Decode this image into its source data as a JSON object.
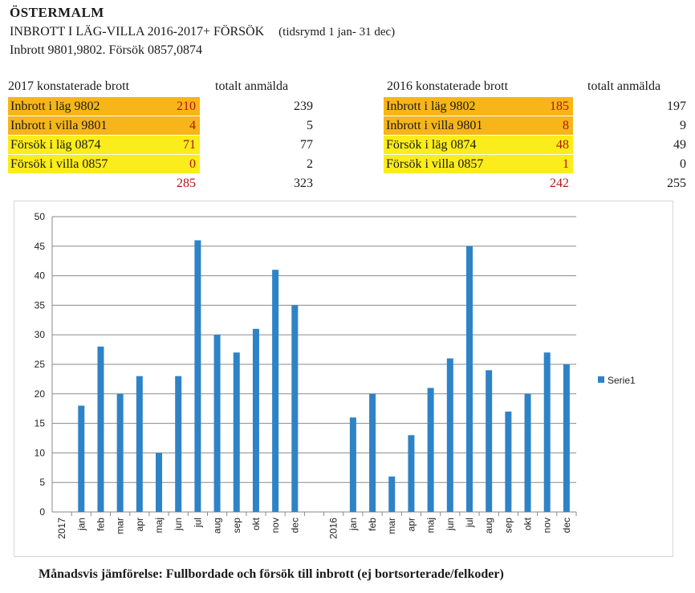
{
  "header": {
    "title": "ÖSTERMALM",
    "subtitle": "INBROTT I LÄG-VILLA 2016-2017+ FÖRSÖK",
    "range": "(tidsrymd 1 jan- 31 dec)",
    "codes": "Inbrott 9801,9802.  Försök 0857,0874"
  },
  "tables": {
    "t2017": {
      "caption": "2017 konstaterade brott",
      "total_header": "totalt anmälda",
      "rows": [
        {
          "label": "Inbrott i läg 9802",
          "value": "210",
          "total": "239",
          "color": "#f7b51a"
        },
        {
          "label": "Inbrott i villa 9801",
          "value": "4",
          "total": "5",
          "color": "#f7b51a"
        },
        {
          "label": "Försök i läg 0874",
          "value": "71",
          "total": "77",
          "color": "#fbec1b"
        },
        {
          "label": "Försök i villa 0857",
          "value": "0",
          "total": "2",
          "color": "#fbec1b"
        }
      ],
      "sum_value": "285",
      "sum_total": "323"
    },
    "t2016": {
      "caption": "2016 konstaterade brott",
      "total_header": "totalt anmälda",
      "rows": [
        {
          "label": "Inbrott i läg 9802",
          "value": "185",
          "total": "197",
          "color": "#f7b51a"
        },
        {
          "label": "Inbrott i villa 9801",
          "value": "8",
          "total": "9",
          "color": "#f7b51a"
        },
        {
          "label": "Försök i läg 0874",
          "value": "48",
          "total": "49",
          "color": "#fbec1b"
        },
        {
          "label": "Försök i villa 0857",
          "value": "1",
          "total": "0",
          "color": "#fbec1b"
        }
      ],
      "sum_value": "242",
      "sum_total": "255"
    }
  },
  "chart_data": {
    "type": "bar",
    "categories": [
      "2017",
      "jan",
      "feb",
      "mar",
      "apr",
      "maj",
      "jun",
      "jul",
      "aug",
      "sep",
      "okt",
      "nov",
      "dec",
      "",
      "2016",
      "jan",
      "feb",
      "mar",
      "apr",
      "maj",
      "jun",
      "jul",
      "aug",
      "sep",
      "okt",
      "nov",
      "dec"
    ],
    "series": [
      {
        "name": "Serie1",
        "color": "#2e83c6",
        "values": [
          null,
          18,
          28,
          20,
          23,
          10,
          23,
          46,
          30,
          27,
          31,
          41,
          35,
          null,
          null,
          16,
          20,
          6,
          13,
          21,
          26,
          45,
          24,
          17,
          20,
          27,
          25
        ]
      }
    ],
    "ylim": [
      0,
      50
    ],
    "yticks": [
      0,
      5,
      10,
      15,
      20,
      25,
      30,
      35,
      40,
      45,
      50
    ],
    "grid": true,
    "legend": "right",
    "caption": "Månadsvis jämförelse: Fullbordade och försök till inbrott (ej bortsorterade/felkoder)"
  }
}
